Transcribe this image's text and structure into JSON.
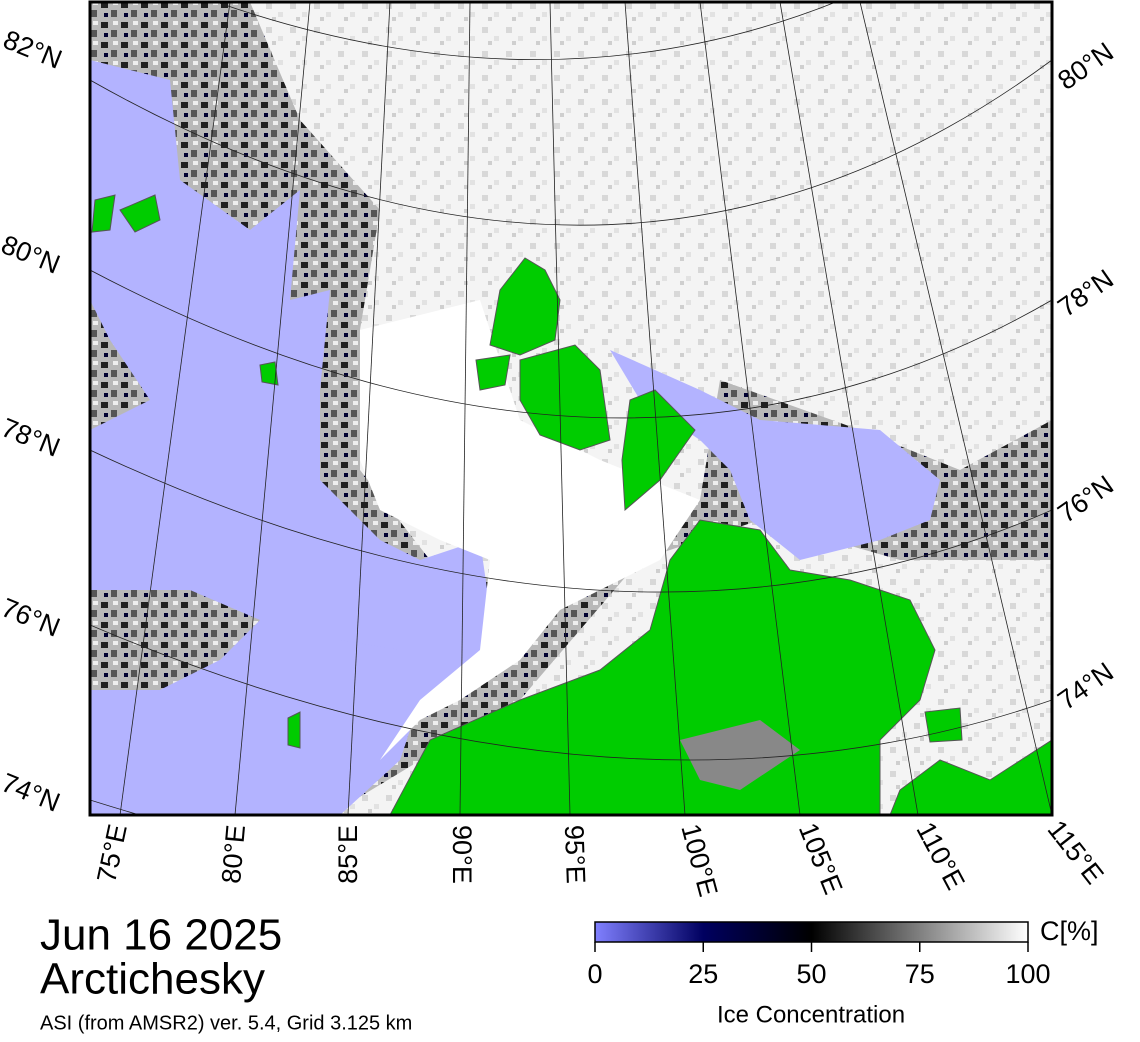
{
  "map": {
    "lat_labels_left": [
      "82°N",
      "80°N",
      "78°N",
      "76°N",
      "74°N"
    ],
    "lat_labels_right": [
      "80°N",
      "78°N",
      "76°N",
      "74°N"
    ],
    "lon_labels": [
      "75°E",
      "80°E",
      "85°E",
      "90°E",
      "95°E",
      "100°E",
      "105°E",
      "110°E",
      "115°E"
    ]
  },
  "date": "Jun 16 2025",
  "region": "Arctichesky",
  "source": "ASI (from AMSR2) ver. 5.4,  Grid 3.125 km",
  "colorbar": {
    "unit": "C[%]",
    "label": "Ice Concentration",
    "range": [
      0,
      100
    ],
    "ticks": [
      0,
      25,
      50,
      75,
      100
    ],
    "colors": [
      "#8080ff",
      "#000060",
      "#000000",
      "#808080",
      "#ffffff"
    ]
  }
}
